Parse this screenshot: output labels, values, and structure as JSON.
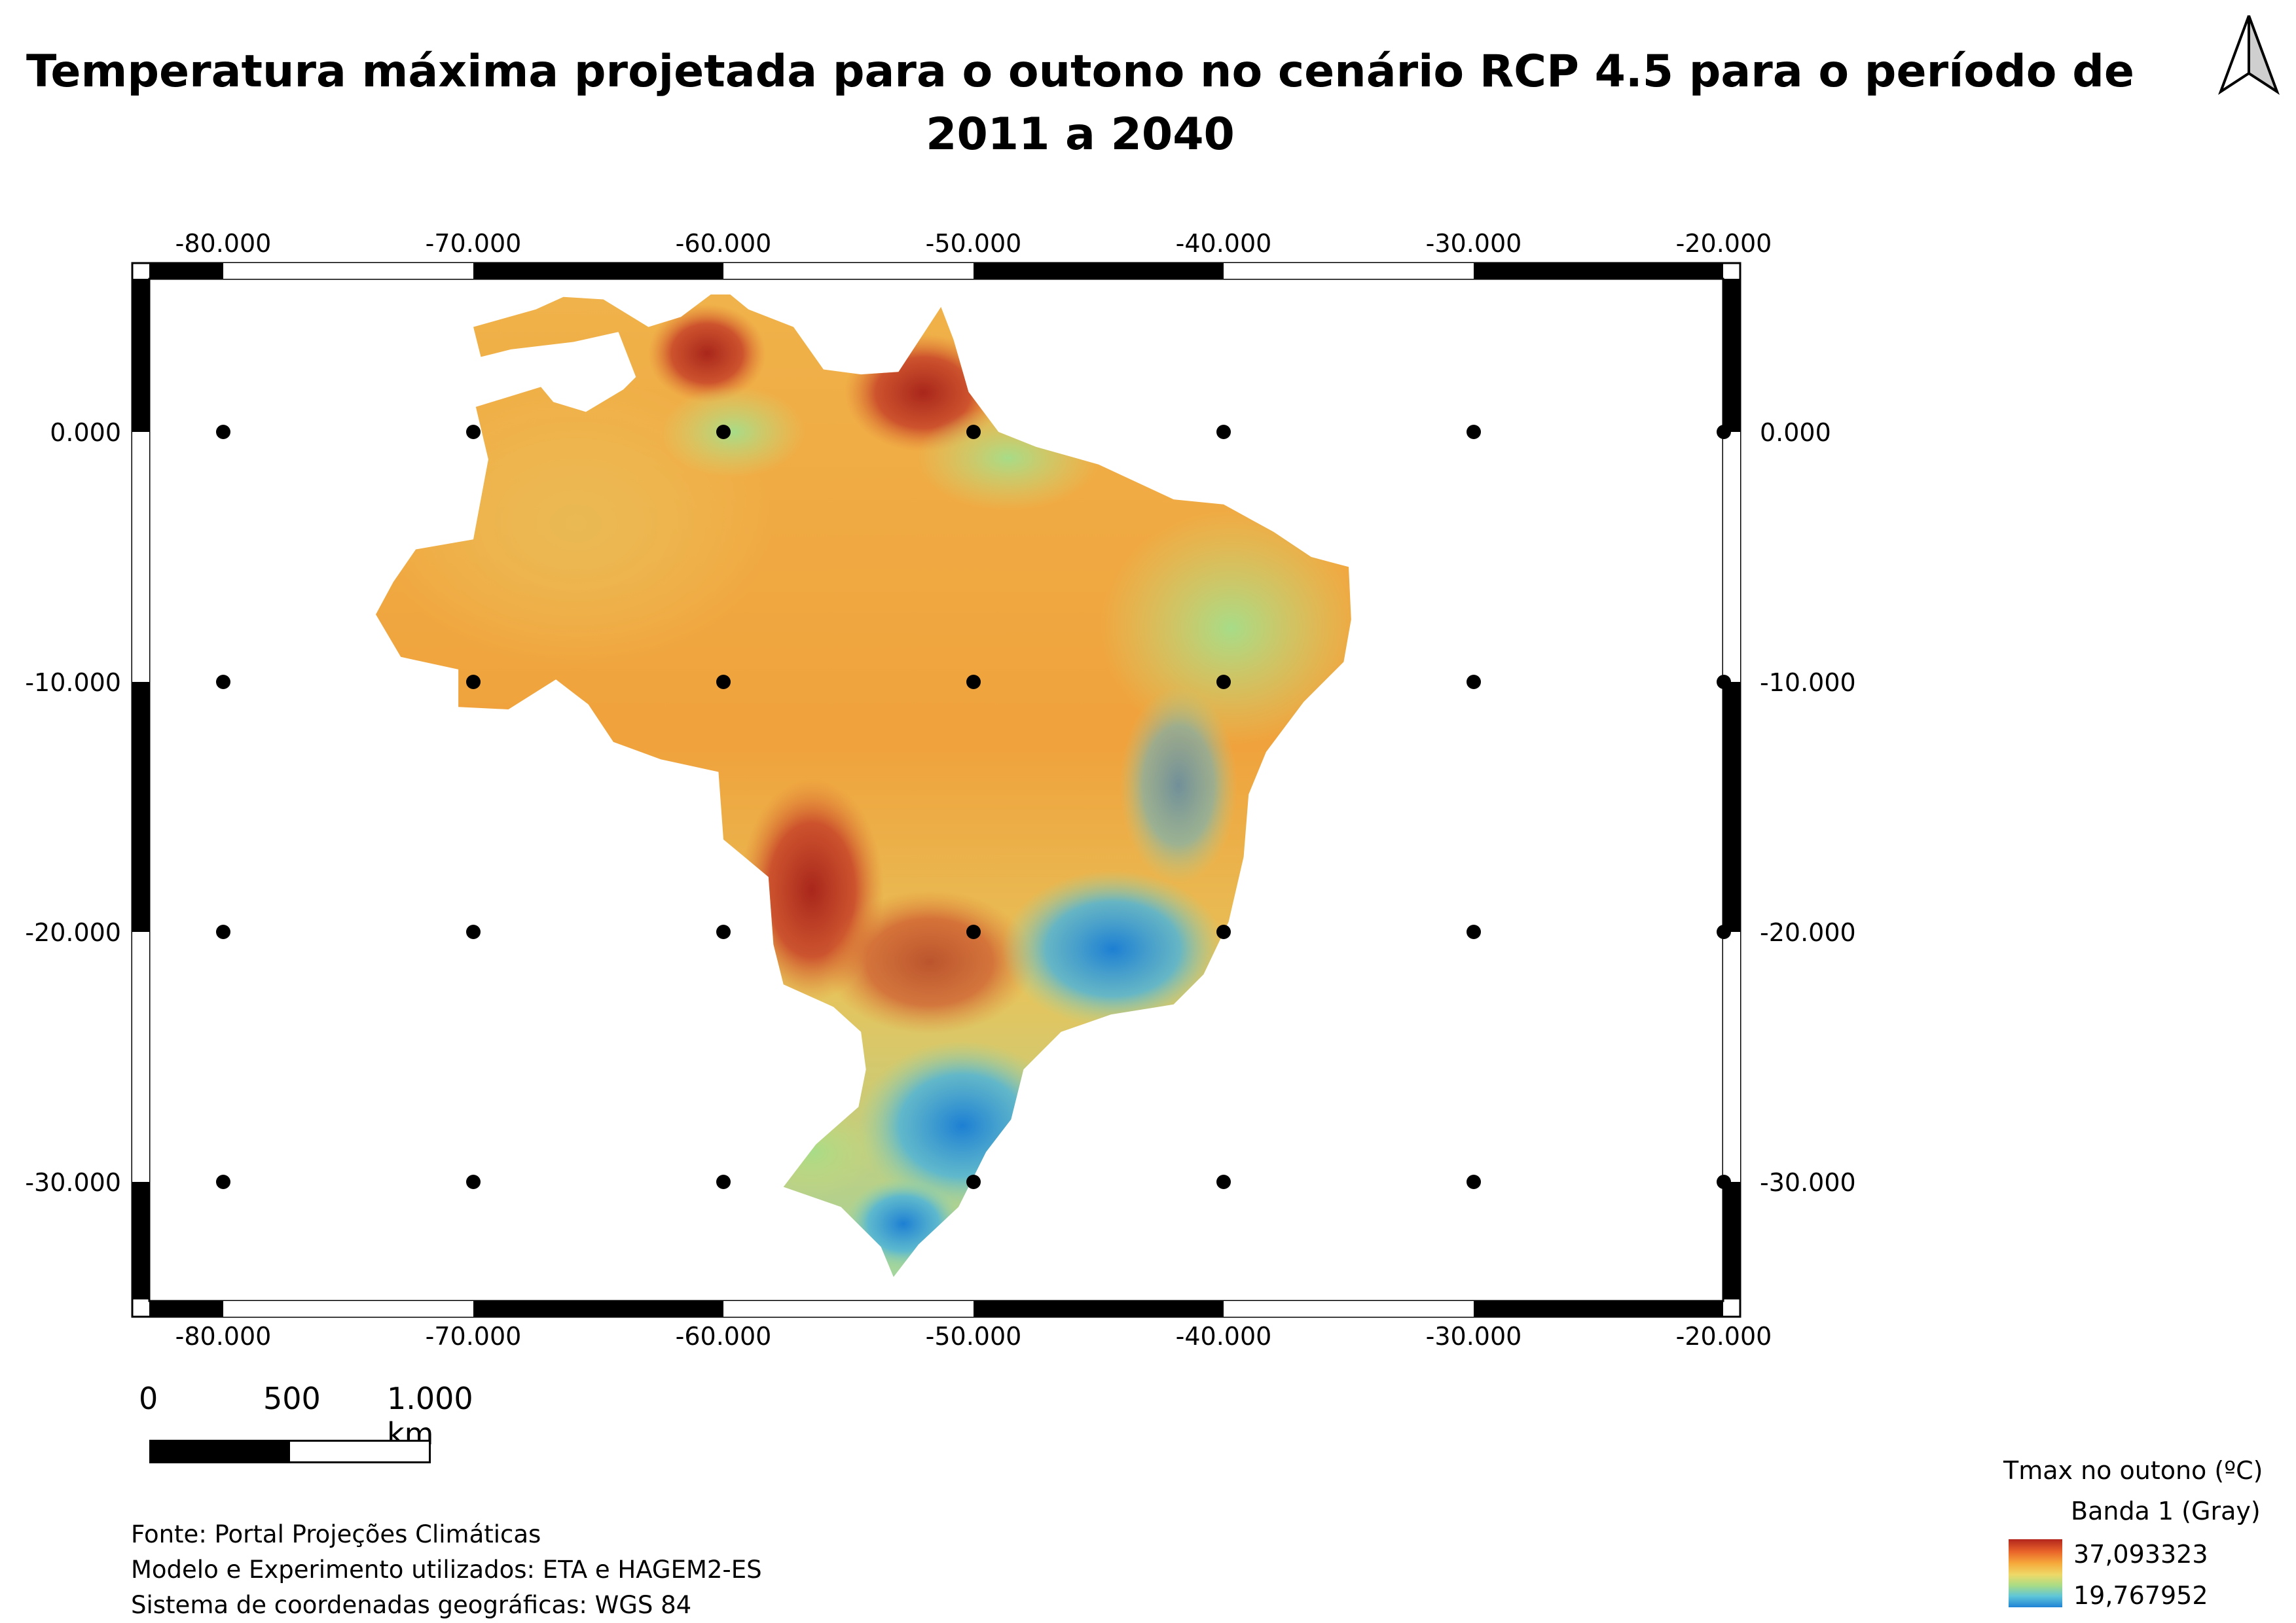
{
  "title": "Temperatura máxima projetada para o outono no cenário RCP 4.5 para o período de 2011 a 2040",
  "map": {
    "region": "Brasil",
    "x_ticks": [
      "-80.000",
      "-70.000",
      "-60.000",
      "-50.000",
      "-40.000",
      "-30.000",
      "-20.000"
    ],
    "y_ticks": [
      "0.000",
      "-10.000",
      "-20.000",
      "-30.000"
    ],
    "grid_points": "lon -80 to -20 step 10, lat 0 to -30 step 10",
    "north_arrow": "north-arrow-icon",
    "colors": {
      "hot": "#b2261c",
      "warm": "#f6a83a",
      "mild": "#eed968",
      "cool": "#a9dc86",
      "cold": "#1f83d6"
    }
  },
  "scalebar": {
    "label_0": "0",
    "label_500": "500",
    "label_1000": "1.000 km"
  },
  "source": {
    "line1": "Fonte: Portal Projeções Climáticas",
    "line2": "Modelo e Experimento utilizados: ETA e HAGEM2-ES",
    "line3": "Sistema de coordenadas geográficas: WGS 84"
  },
  "legend": {
    "title": "Tmax no outono (ºC)",
    "band": "Banda 1 (Gray)",
    "max": "37,093323",
    "min": "19,767952"
  }
}
